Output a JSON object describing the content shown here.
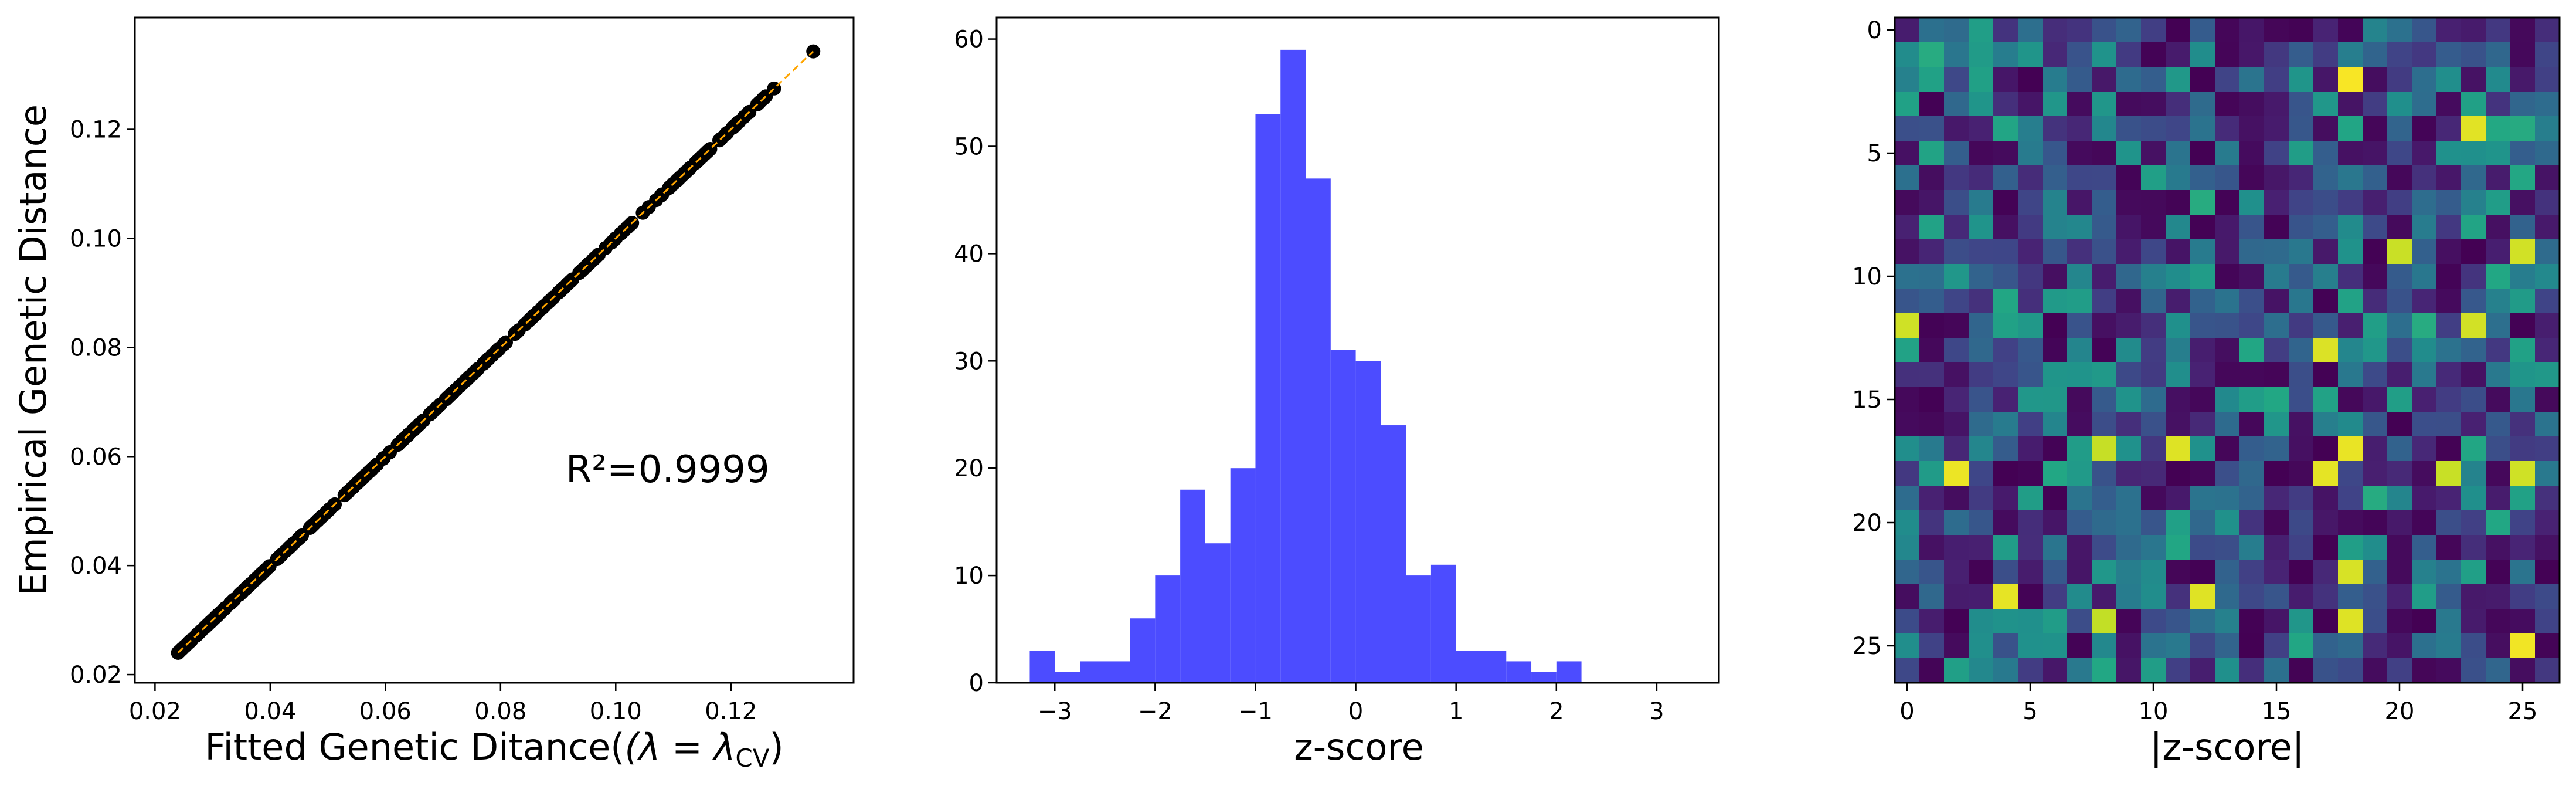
{
  "chart_data": [
    {
      "type": "scatter",
      "xlabel": "Fitted Genetic Ditance(",
      "xlabel_math": "(λ = λ",
      "xlabel_math_sub": "CV",
      "xlabel_close": ")",
      "ylabel": "Empirical Genetic Distance",
      "annotation": "R²=0.9999",
      "xlim": [
        0.0165,
        0.1413
      ],
      "ylim": [
        0.0185,
        0.1405
      ],
      "xticks": [
        0.02,
        0.04,
        0.06,
        0.08,
        0.1,
        0.12
      ],
      "xtick_labels": [
        "0.02",
        "0.04",
        "0.06",
        "0.08",
        "0.10",
        "0.12"
      ],
      "yticks": [
        0.02,
        0.04,
        0.06,
        0.08,
        0.1,
        0.12
      ],
      "ytick_labels": [
        "0.02",
        "0.04",
        "0.06",
        "0.08",
        "0.10",
        "0.12"
      ],
      "marker_color": "#000000",
      "fit_line_color": "#ffa500",
      "fit_line": {
        "x": [
          0.024,
          0.1343
        ],
        "y": [
          0.024,
          0.1343
        ]
      },
      "points_range": {
        "min": 0.024,
        "max": 0.1343,
        "count": 351
      },
      "highlight_points": [
        {
          "x": 0.1343,
          "y": 0.1343
        },
        {
          "x": 0.1275,
          "y": 0.1275
        },
        {
          "x": 0.1248,
          "y": 0.1248
        },
        {
          "x": 0.1232,
          "y": 0.1232
        }
      ]
    },
    {
      "type": "bar",
      "subtype": "histogram",
      "xlabel": "z-score",
      "ylabel": "",
      "xlim": [
        -3.58,
        3.62
      ],
      "ylim": [
        0,
        62
      ],
      "xticks": [
        -3,
        -2,
        -1,
        0,
        1,
        2,
        3
      ],
      "xtick_labels": [
        "−3",
        "−2",
        "−1",
        "0",
        "1",
        "2",
        "3"
      ],
      "yticks": [
        0,
        10,
        20,
        30,
        40,
        50,
        60
      ],
      "ytick_labels": [
        "0",
        "10",
        "20",
        "30",
        "40",
        "50",
        "60"
      ],
      "bin_start": -3.25,
      "bin_width": 0.25,
      "values": [
        3,
        1,
        2,
        2,
        6,
        10,
        18,
        13,
        20,
        53,
        59,
        47,
        31,
        30,
        24,
        10,
        11,
        3,
        3,
        2,
        1,
        2
      ],
      "bar_color": "#4c4cff"
    },
    {
      "type": "heatmap",
      "xlabel": "|z-score|",
      "colormap": "viridis",
      "rows": 27,
      "cols": 27,
      "xticks": [
        0,
        5,
        10,
        15,
        20,
        25
      ],
      "xtick_labels": [
        "0",
        "5",
        "10",
        "15",
        "20",
        "25"
      ],
      "yticks": [
        0,
        5,
        10,
        15,
        20,
        25
      ],
      "ytick_labels": [
        "0",
        "5",
        "10",
        "15",
        "20",
        "25"
      ],
      "value_range": [
        0,
        1
      ],
      "bright_cells": [
        [
          2,
          18
        ],
        [
          4,
          23
        ],
        [
          12,
          23
        ],
        [
          18,
          2
        ],
        [
          18,
          17
        ],
        [
          18,
          22
        ],
        [
          18,
          25
        ],
        [
          22,
          18
        ],
        [
          23,
          4
        ],
        [
          23,
          12
        ],
        [
          13,
          17
        ],
        [
          17,
          18
        ],
        [
          9,
          25
        ],
        [
          9,
          20
        ],
        [
          24,
          18
        ],
        [
          25,
          25
        ],
        [
          12,
          0
        ],
        [
          17,
          11
        ],
        [
          17,
          8
        ],
        [
          24,
          8
        ]
      ]
    }
  ]
}
